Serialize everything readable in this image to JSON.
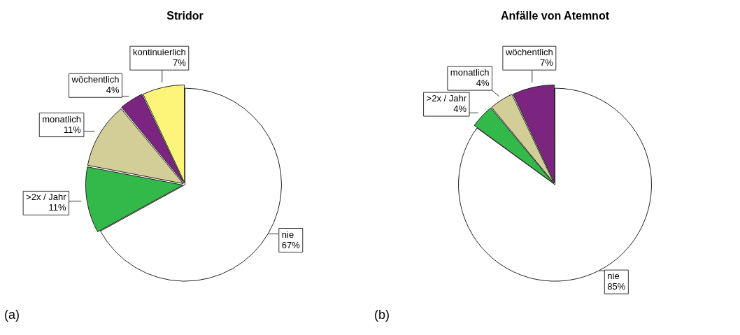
{
  "chart_data": [
    {
      "type": "pie",
      "title": "Stridor",
      "categories": [
        "nie",
        ">2x / Jahr",
        "monatlich",
        "wöchentlich",
        "kontinuierlich"
      ],
      "values": [
        67,
        11,
        11,
        4,
        7
      ],
      "value_labels": [
        "67%",
        "11%",
        "11%",
        "4%",
        "7%"
      ],
      "colors": [
        "#ffffff",
        "#33b84a",
        "#d3cd98",
        "#7b2580",
        "#fdf57a"
      ],
      "annotations": [
        "(a)"
      ],
      "legend": false
    },
    {
      "type": "pie",
      "title": "Anfälle von Atemnot",
      "categories": [
        "nie",
        ">2x / Jahr",
        "monatlich",
        "wöchentlich"
      ],
      "values": [
        85,
        4,
        4,
        7
      ],
      "value_labels": [
        "85%",
        "4%",
        "4%",
        "7%"
      ],
      "colors": [
        "#ffffff",
        "#33b84a",
        "#d3cd98",
        "#7b2580"
      ],
      "annotations": [
        "(b)"
      ],
      "legend": false
    }
  ]
}
